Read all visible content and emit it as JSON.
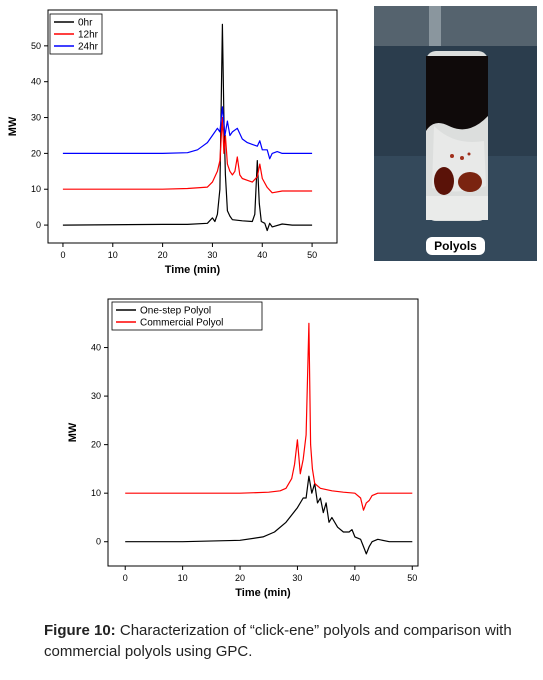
{
  "chart_data": [
    {
      "type": "line",
      "xlabel": "Time (min)",
      "ylabel": "MW",
      "xlim": [
        -3,
        55
      ],
      "ylim": [
        -5,
        60
      ],
      "xticks": [
        0,
        10,
        20,
        30,
        40,
        50
      ],
      "yticks": [
        0,
        10,
        20,
        30,
        40,
        50
      ],
      "legend_position": "top-left",
      "series": [
        {
          "name": "0hr",
          "color": "#000000",
          "x": [
            0,
            20,
            25,
            29,
            30,
            30.5,
            31,
            31.5,
            32,
            32.3,
            32.6,
            33,
            33.5,
            34,
            36,
            38,
            38.5,
            39,
            39.4,
            39.8,
            40.5,
            41,
            41.5,
            42,
            44,
            46,
            48,
            50
          ],
          "y": [
            0,
            0.2,
            0.2,
            0.5,
            2,
            1,
            3,
            10,
            56,
            30,
            14,
            4,
            2.5,
            1.5,
            1.2,
            1,
            3,
            18,
            6,
            1,
            0.5,
            -1.5,
            0.5,
            -0.5,
            0.3,
            0,
            0,
            0
          ]
        },
        {
          "name": "12hr",
          "color": "#ff0000",
          "x": [
            0,
            20,
            25,
            29,
            30,
            31,
            31.5,
            32,
            32.3,
            32.6,
            33,
            33.5,
            34,
            34.5,
            35,
            35.5,
            36,
            37,
            38,
            39,
            39.5,
            40,
            41,
            42,
            44,
            46,
            48,
            50
          ],
          "y": [
            10,
            10,
            10.2,
            10.6,
            12,
            15,
            18,
            30,
            20,
            25,
            17,
            15,
            14,
            15,
            19,
            14,
            13,
            12.5,
            12,
            13.5,
            17,
            13,
            10.5,
            9,
            9.5,
            9.5,
            9.5,
            9.5
          ]
        },
        {
          "name": "24hr",
          "color": "#0000ff",
          "x": [
            0,
            10,
            20,
            25,
            27,
            28,
            29,
            30,
            31,
            31.5,
            32,
            32.5,
            33,
            33.5,
            34,
            35,
            36,
            37,
            38,
            39,
            39.5,
            40,
            41,
            41.5,
            42,
            43,
            44,
            46,
            48,
            50
          ],
          "y": [
            20,
            20,
            20,
            20.2,
            21,
            22,
            23,
            25,
            27,
            26,
            33,
            25,
            29,
            25,
            26,
            27,
            24,
            23,
            22.5,
            22,
            23.5,
            21,
            21,
            18.5,
            20,
            20.5,
            20,
            20,
            20,
            20
          ]
        }
      ]
    },
    {
      "type": "line",
      "xlabel": "Time (min)",
      "ylabel": "MW",
      "xlim": [
        -3,
        51
      ],
      "ylim": [
        -5,
        50
      ],
      "xticks": [
        0,
        10,
        20,
        30,
        40,
        50
      ],
      "yticks": [
        0,
        10,
        20,
        30,
        40
      ],
      "legend_position": "top-left",
      "series": [
        {
          "name": "One-step Polyol",
          "color": "#000000",
          "x": [
            0,
            10,
            20,
            24,
            26,
            28,
            29,
            30,
            31,
            31.5,
            32,
            32.5,
            33,
            33.5,
            34,
            34.5,
            35,
            35.5,
            36,
            37,
            38,
            39,
            39.5,
            40,
            41,
            41.5,
            42,
            42.5,
            43,
            44,
            46,
            48,
            50
          ],
          "y": [
            0,
            0,
            0.3,
            1,
            2,
            4,
            5.5,
            7,
            9,
            9,
            13.5,
            10,
            12,
            8,
            9,
            6,
            8,
            4,
            5,
            3,
            2,
            2,
            2.5,
            1,
            0.5,
            -1,
            -2.5,
            -1,
            0,
            0.5,
            0,
            0,
            0
          ]
        },
        {
          "name": "Commercial Polyol",
          "color": "#ff0000",
          "x": [
            0,
            10,
            20,
            25,
            27,
            28,
            29,
            29.5,
            30,
            30.5,
            31,
            31.5,
            32,
            32.3,
            32.6,
            33,
            34,
            36,
            38,
            40,
            41,
            41.5,
            42,
            42.5,
            43,
            44,
            46,
            48,
            50
          ],
          "y": [
            10,
            10,
            10,
            10.2,
            10.5,
            11,
            13,
            16,
            21,
            14,
            17,
            22,
            45,
            20,
            15,
            12,
            11,
            10.5,
            10.2,
            10,
            9,
            6.5,
            8,
            8.5,
            9.5,
            10,
            10,
            10,
            10
          ]
        }
      ]
    }
  ],
  "photo": {
    "label": "Polyols"
  },
  "caption": {
    "label": "Figure 10:",
    "text": " Characterization of “click-ene” polyols and comparison with commercial polyols using GPC."
  }
}
